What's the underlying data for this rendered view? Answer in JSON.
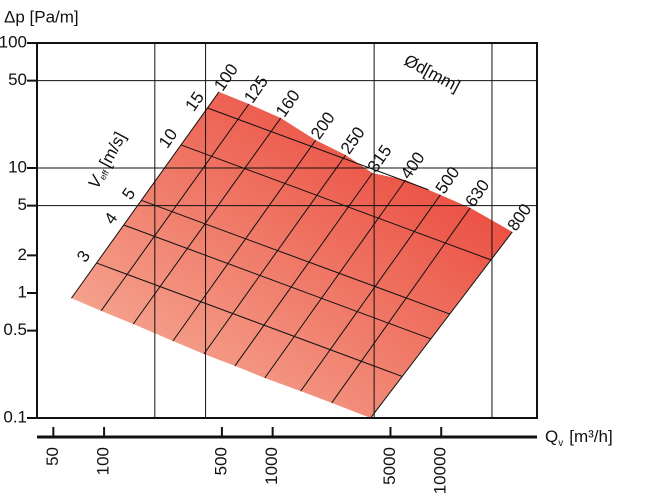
{
  "chart_data": {
    "type": "nomogram",
    "ylabel": "Δp [Pa/m]",
    "xlabel": {
      "symbol": "Q",
      "subscript": "v",
      "unit": "[m³/h]"
    },
    "diameter_title": "Ød[mm]",
    "velocity_title": {
      "symbol": "V",
      "subscript": "eff",
      "unit": "[m/s]"
    },
    "log_x": true,
    "log_y": true,
    "xlim": [
      40,
      37000
    ],
    "ylim": [
      0.1,
      100
    ],
    "xticks": [
      50,
      100,
      500,
      1000,
      5000,
      10000
    ],
    "yticks": [
      100,
      50,
      10,
      5,
      2,
      1,
      0.5,
      0.1
    ],
    "xgrid": [
      200,
      400,
      4000,
      20000
    ],
    "ygrid": [
      50,
      10,
      5
    ],
    "fill_colors": [
      "#f7b9a2",
      "#e8352a"
    ],
    "line_color": "#111111",
    "diameter_lines": [
      {
        "name": "100",
        "x": [
          480,
          64
        ],
        "values": [
          40.6,
          0.91
        ]
      },
      {
        "name": "125",
        "x": [
          723,
          96
        ],
        "values": [
          32.5,
          0.72
        ]
      },
      {
        "name": "160",
        "x": [
          1117,
          149
        ],
        "values": [
          25.1,
          0.565
        ]
      },
      {
        "name": "200",
        "x": [
          1800,
          256
        ],
        "values": [
          16.7,
          0.413
        ]
      },
      {
        "name": "250",
        "x": [
          2710,
          391
        ],
        "values": [
          12.7,
          0.325
        ]
      },
      {
        "name": "315",
        "x": [
          3910,
          597
        ],
        "values": [
          9.1,
          0.261
        ]
      },
      {
        "name": "400",
        "x": [
          6140,
          898
        ],
        "values": [
          8.0,
          0.209
        ]
      },
      {
        "name": "500",
        "x": [
          9890,
          1466
        ],
        "values": [
          6.1,
          0.164
        ]
      },
      {
        "name": "630",
        "x": [
          14860,
          2240
        ],
        "values": [
          4.8,
          0.132
        ]
      },
      {
        "name": "800",
        "x": [
          26400,
          3810
        ],
        "values": [
          3.08,
          0.1
        ]
      }
    ],
    "velocity_lines": [
      {
        "name": "3",
        "x": [
          90,
          5870
        ],
        "values": [
          1.74,
          0.215
        ]
      },
      {
        "name": "4",
        "x": [
          131,
          8670
        ],
        "values": [
          3.5,
          0.43
        ]
      },
      {
        "name": "5",
        "x": [
          167,
          11200
        ],
        "values": [
          5.5,
          0.68
        ]
      },
      {
        "name": "10",
        "x": [
          286,
          19700
        ],
        "values": [
          15.3,
          1.84
        ]
      },
      {
        "name": "15",
        "x": [
          411,
          8390
        ],
        "values": [
          30.2,
          6.7
        ]
      }
    ]
  }
}
